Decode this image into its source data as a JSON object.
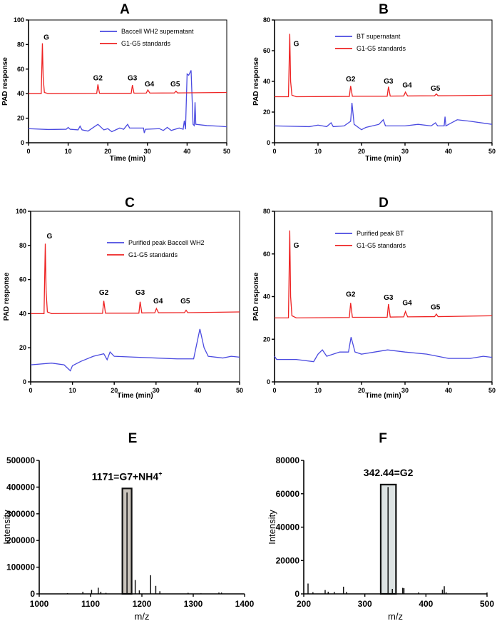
{
  "chart_data": [
    {
      "panel": "A",
      "type": "line",
      "xlabel": "Time (min)",
      "ylabel": "PAD response",
      "xlim": [
        0,
        50
      ],
      "ylim": [
        0,
        100
      ],
      "xticks": [
        0,
        10,
        20,
        30,
        40,
        50
      ],
      "yticks": [
        0,
        20,
        40,
        60,
        80,
        100
      ],
      "legend": "top-right",
      "series": [
        {
          "name": "Baccell WH2 supernatant",
          "color": "#4a4ae0",
          "points": [
            [
              0,
              11.5
            ],
            [
              5,
              10.8
            ],
            [
              9.5,
              11
            ],
            [
              10,
              12.5
            ],
            [
              10.5,
              11
            ],
            [
              12.5,
              10.5
            ],
            [
              13,
              13.5
            ],
            [
              13.5,
              10.5
            ],
            [
              15,
              9.5
            ],
            [
              17.5,
              15
            ],
            [
              19,
              10.5
            ],
            [
              20,
              11.5
            ],
            [
              21,
              9
            ],
            [
              23,
              12
            ],
            [
              24,
              11
            ],
            [
              25,
              15
            ],
            [
              25.5,
              12
            ],
            [
              29,
              12
            ],
            [
              29.2,
              8
            ],
            [
              29.5,
              11
            ],
            [
              33,
              11.5
            ],
            [
              34,
              10
            ],
            [
              35,
              12.5
            ],
            [
              36,
              10
            ],
            [
              38,
              12
            ],
            [
              39,
              11
            ],
            [
              39.3,
              18
            ],
            [
              39.6,
              11
            ],
            [
              40,
              56
            ],
            [
              40.4,
              55
            ],
            [
              41,
              59
            ],
            [
              41.5,
              15
            ],
            [
              41.8,
              14
            ],
            [
              42,
              33
            ],
            [
              42.2,
              15
            ],
            [
              45,
              14
            ],
            [
              48,
              13.5
            ],
            [
              50,
              13
            ]
          ]
        },
        {
          "name": "G1-G5 standards",
          "color": "#ee2222",
          "points": [
            [
              0,
              40
            ],
            [
              3.2,
              40
            ],
            [
              3.5,
              81
            ],
            [
              3.7,
              53
            ],
            [
              4,
              41
            ],
            [
              5,
              40
            ],
            [
              17.2,
              40.2
            ],
            [
              17.5,
              47.5
            ],
            [
              17.9,
              40.3
            ],
            [
              25.9,
              40.3
            ],
            [
              26.2,
              47
            ],
            [
              26.6,
              40.4
            ],
            [
              29.7,
              40.5
            ],
            [
              30.1,
              43
            ],
            [
              30.6,
              40.5
            ],
            [
              36.8,
              40.6
            ],
            [
              37.2,
              42
            ],
            [
              37.6,
              40.6
            ],
            [
              50,
              41
            ]
          ]
        }
      ],
      "peak_labels": [
        {
          "text": "G",
          "x": 4.5,
          "y": 84
        },
        {
          "text": "G2",
          "x": 17.5,
          "y": 51
        },
        {
          "text": "G3",
          "x": 26.2,
          "y": 51
        },
        {
          "text": "G4",
          "x": 30.5,
          "y": 46
        },
        {
          "text": "G5",
          "x": 37,
          "y": 46
        }
      ]
    },
    {
      "panel": "B",
      "type": "line",
      "xlabel": "Time (min)",
      "ylabel": "PAD response",
      "xlim": [
        0,
        50
      ],
      "ylim": [
        0,
        80
      ],
      "xticks": [
        0,
        10,
        20,
        30,
        40,
        50
      ],
      "yticks": [
        0,
        20,
        40,
        60,
        80
      ],
      "legend": "top-right",
      "series": [
        {
          "name": "BT supernatant",
          "color": "#4a4ae0",
          "points": [
            [
              0,
              11
            ],
            [
              8,
              10.5
            ],
            [
              10,
              11.5
            ],
            [
              12,
              10.5
            ],
            [
              13,
              13
            ],
            [
              13.5,
              10.5
            ],
            [
              16,
              11
            ],
            [
              17.5,
              14
            ],
            [
              17.8,
              26
            ],
            [
              18.3,
              12
            ],
            [
              20,
              8.5
            ],
            [
              21,
              10
            ],
            [
              24,
              12
            ],
            [
              25,
              15
            ],
            [
              25.5,
              11
            ],
            [
              28,
              11
            ],
            [
              30,
              11
            ],
            [
              33,
              12
            ],
            [
              36,
              11
            ],
            [
              37,
              13
            ],
            [
              37.5,
              11
            ],
            [
              39,
              11
            ],
            [
              39.2,
              17
            ],
            [
              39.4,
              11
            ],
            [
              42,
              15
            ],
            [
              45,
              14
            ],
            [
              50,
              12
            ]
          ]
        },
        {
          "name": "G1-G5 standards",
          "color": "#ee2222",
          "points": [
            [
              0,
              30
            ],
            [
              3.2,
              30
            ],
            [
              3.5,
              71
            ],
            [
              3.7,
              40
            ],
            [
              4,
              31
            ],
            [
              5,
              30
            ],
            [
              17.2,
              30.2
            ],
            [
              17.5,
              37
            ],
            [
              17.9,
              30.3
            ],
            [
              25.9,
              30.3
            ],
            [
              26.2,
              36.5
            ],
            [
              26.6,
              30.4
            ],
            [
              29.7,
              30.5
            ],
            [
              30.1,
              33
            ],
            [
              30.6,
              30.5
            ],
            [
              36.8,
              30.6
            ],
            [
              37.2,
              31.8
            ],
            [
              37.6,
              30.6
            ],
            [
              50,
              31
            ]
          ]
        }
      ],
      "peak_labels": [
        {
          "text": "G",
          "x": 5,
          "y": 63
        },
        {
          "text": "G2",
          "x": 17.5,
          "y": 40
        },
        {
          "text": "G3",
          "x": 26.2,
          "y": 38.5
        },
        {
          "text": "G4",
          "x": 30.5,
          "y": 36
        },
        {
          "text": "G5",
          "x": 37,
          "y": 34
        }
      ]
    },
    {
      "panel": "C",
      "type": "line",
      "xlabel": "Time (min)",
      "ylabel": "PAD response",
      "xlim": [
        0,
        50
      ],
      "ylim": [
        0,
        100
      ],
      "xticks": [
        0,
        10,
        20,
        30,
        40,
        50
      ],
      "yticks": [
        0,
        20,
        40,
        60,
        80,
        100
      ],
      "legend": "top-right",
      "series": [
        {
          "name": "Purified peak Baccell WH2",
          "color": "#4a4ae0",
          "points": [
            [
              0,
              10
            ],
            [
              5,
              11
            ],
            [
              8,
              10
            ],
            [
              9.5,
              6.5
            ],
            [
              10,
              9.5
            ],
            [
              12,
              12
            ],
            [
              15,
              15
            ],
            [
              17.5,
              16.5
            ],
            [
              18.3,
              13
            ],
            [
              19,
              17.5
            ],
            [
              20,
              15
            ],
            [
              25,
              14.5
            ],
            [
              30,
              14
            ],
            [
              35,
              13.5
            ],
            [
              39,
              13.5
            ],
            [
              40.5,
              31
            ],
            [
              41.5,
              20
            ],
            [
              42.5,
              15
            ],
            [
              46,
              14
            ],
            [
              48,
              15
            ],
            [
              50,
              14.5
            ]
          ]
        },
        {
          "name": "G1-G5 standards",
          "color": "#ee2222",
          "points": [
            [
              0,
              40
            ],
            [
              3.2,
              40
            ],
            [
              3.5,
              81
            ],
            [
              3.7,
              53
            ],
            [
              4,
              41
            ],
            [
              5,
              40
            ],
            [
              17.2,
              40.2
            ],
            [
              17.5,
              47.5
            ],
            [
              17.9,
              40.3
            ],
            [
              25.9,
              40.3
            ],
            [
              26.2,
              47
            ],
            [
              26.6,
              40.4
            ],
            [
              29.7,
              40.5
            ],
            [
              30.1,
              43
            ],
            [
              30.6,
              40.5
            ],
            [
              36.8,
              40.6
            ],
            [
              37.2,
              42
            ],
            [
              37.6,
              40.6
            ],
            [
              50,
              41
            ]
          ]
        }
      ],
      "peak_labels": [
        {
          "text": "G",
          "x": 4.5,
          "y": 84
        },
        {
          "text": "G2",
          "x": 17.5,
          "y": 51
        },
        {
          "text": "G3",
          "x": 26.2,
          "y": 51
        },
        {
          "text": "G4",
          "x": 30.5,
          "y": 46
        },
        {
          "text": "G5",
          "x": 37,
          "y": 46
        }
      ]
    },
    {
      "panel": "D",
      "type": "line",
      "xlabel": "Time (min)",
      "ylabel": "PAD response",
      "xlim": [
        0,
        50
      ],
      "ylim": [
        0,
        80
      ],
      "xticks": [
        0,
        10,
        20,
        30,
        40,
        50
      ],
      "yticks": [
        0,
        20,
        40,
        60,
        80
      ],
      "legend": "top-right",
      "series": [
        {
          "name": "Purified peak BT",
          "color": "#4a4ae0",
          "points": [
            [
              0,
              12
            ],
            [
              0.5,
              10.5
            ],
            [
              5,
              10.5
            ],
            [
              9,
              9.5
            ],
            [
              10,
              13
            ],
            [
              11,
              15
            ],
            [
              12,
              12
            ],
            [
              15,
              14
            ],
            [
              17,
              14
            ],
            [
              17.6,
              21
            ],
            [
              18.5,
              14
            ],
            [
              20,
              13
            ],
            [
              23,
              14
            ],
            [
              26,
              15
            ],
            [
              30,
              14
            ],
            [
              35,
              13
            ],
            [
              40,
              11
            ],
            [
              45,
              11
            ],
            [
              48,
              12
            ],
            [
              50,
              11.5
            ]
          ]
        },
        {
          "name": "G1-G5 standards",
          "color": "#ee2222",
          "points": [
            [
              0,
              30
            ],
            [
              3.2,
              30
            ],
            [
              3.5,
              71
            ],
            [
              3.7,
              40
            ],
            [
              4,
              31
            ],
            [
              5,
              30
            ],
            [
              17.2,
              30.2
            ],
            [
              17.5,
              37
            ],
            [
              17.9,
              30.3
            ],
            [
              25.9,
              30.3
            ],
            [
              26.2,
              36.5
            ],
            [
              26.6,
              30.4
            ],
            [
              29.7,
              30.5
            ],
            [
              30.1,
              33
            ],
            [
              30.6,
              30.5
            ],
            [
              36.8,
              30.6
            ],
            [
              37.2,
              31.8
            ],
            [
              37.6,
              30.6
            ],
            [
              50,
              31
            ]
          ]
        }
      ],
      "peak_labels": [
        {
          "text": "G",
          "x": 5,
          "y": 63
        },
        {
          "text": "G2",
          "x": 17.5,
          "y": 40
        },
        {
          "text": "G3",
          "x": 26.2,
          "y": 38.5
        },
        {
          "text": "G4",
          "x": 30.5,
          "y": 36
        },
        {
          "text": "G5",
          "x": 37,
          "y": 34
        }
      ]
    },
    {
      "panel": "E",
      "type": "bar",
      "xlabel": "m/z",
      "ylabel": "Intensity",
      "xlim": [
        1000,
        1400
      ],
      "ylim": [
        0,
        500000
      ],
      "xticks": [
        1000,
        1100,
        1200,
        1300,
        1400
      ],
      "yticks": [
        0,
        100000,
        200000,
        300000,
        400000,
        500000
      ],
      "annotation": "1171=G7+NH4",
      "annotation_sup": "+",
      "highlight": {
        "x": [
          1162,
          1180
        ],
        "y": 395000,
        "fill": "#c9c3bb"
      },
      "peaks": [
        [
          1055,
          3000
        ],
        [
          1085,
          8000
        ],
        [
          1102,
          15000
        ],
        [
          1115,
          23000
        ],
        [
          1120,
          8000
        ],
        [
          1130,
          4000
        ],
        [
          1171,
          380000
        ],
        [
          1187,
          52000
        ],
        [
          1195,
          13000
        ],
        [
          1217,
          70000
        ],
        [
          1227,
          30000
        ],
        [
          1235,
          10000
        ],
        [
          1290,
          4000
        ],
        [
          1315,
          2000
        ],
        [
          1350,
          5000
        ],
        [
          1355,
          5000
        ]
      ]
    },
    {
      "panel": "F",
      "type": "bar",
      "xlabel": "m/z",
      "ylabel": "Intensity",
      "xlim": [
        200,
        500
      ],
      "ylim": [
        0,
        80000
      ],
      "xticks": [
        200,
        300,
        400,
        500
      ],
      "yticks": [
        0,
        20000,
        40000,
        60000,
        80000
      ],
      "annotation": "342.44=G2",
      "annotation_sup": "",
      "highlight": {
        "x": [
          326,
          351
        ],
        "y": 65500,
        "fill": "#dde3e3"
      },
      "peaks": [
        [
          207,
          6200
        ],
        [
          215,
          1000
        ],
        [
          235,
          2300
        ],
        [
          240,
          1300
        ],
        [
          250,
          1200
        ],
        [
          265,
          4300
        ],
        [
          270,
          1200
        ],
        [
          338,
          64000
        ],
        [
          345,
          3000
        ],
        [
          362,
          3600
        ],
        [
          364,
          3400
        ],
        [
          388,
          900
        ],
        [
          427,
          2500
        ],
        [
          430,
          4600
        ],
        [
          433,
          1000
        ],
        [
          500,
          800
        ]
      ]
    }
  ]
}
